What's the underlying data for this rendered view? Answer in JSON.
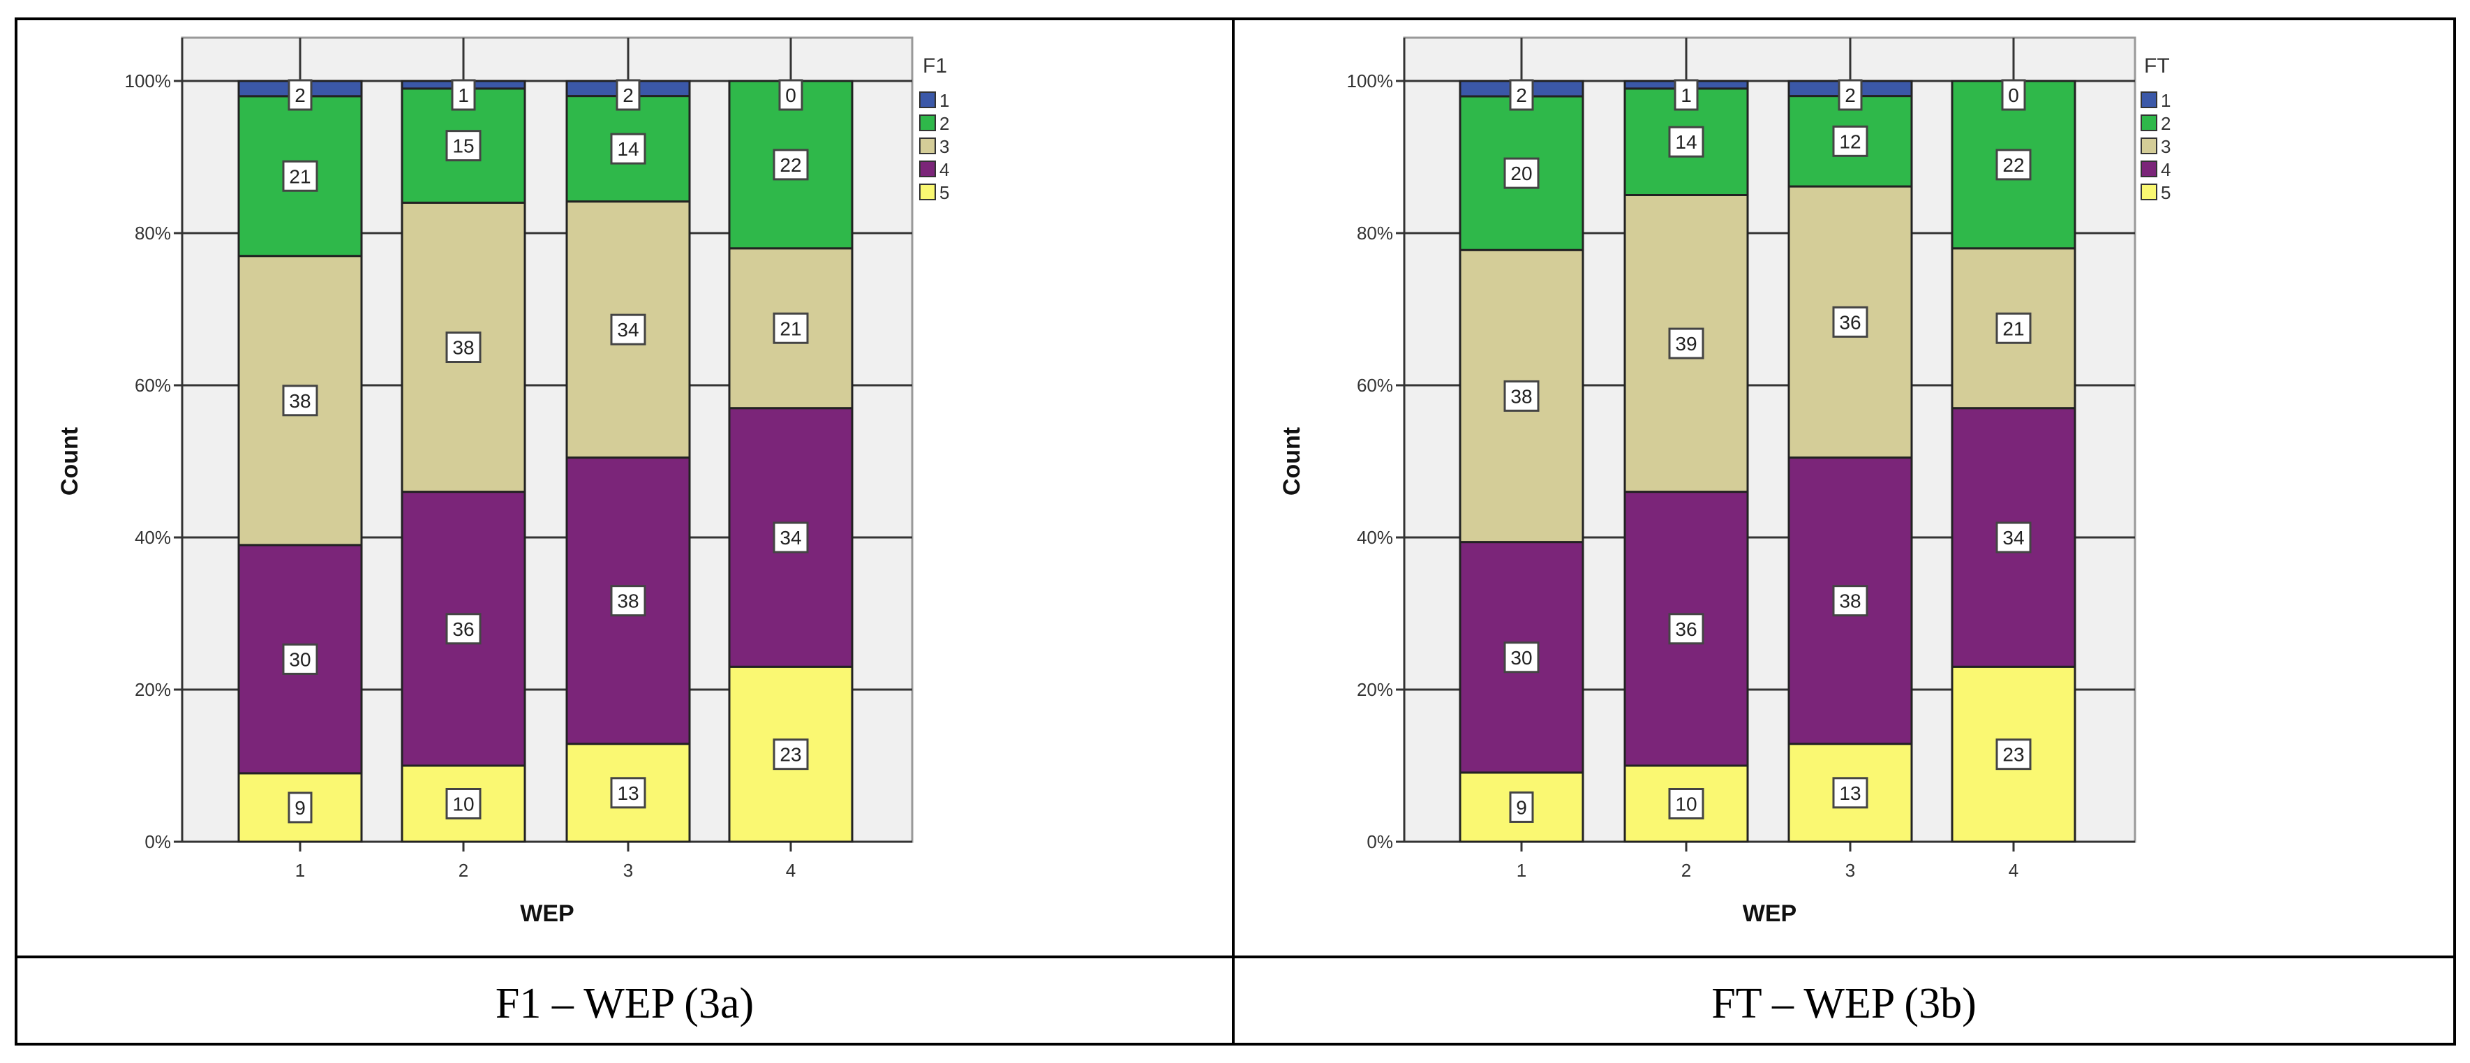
{
  "chart_data": [
    {
      "type": "bar",
      "stacked": "percent",
      "caption": "F1 – WEP (3a)",
      "xlabel": "WEP",
      "ylabel": "Count",
      "categories": [
        "1",
        "2",
        "3",
        "4"
      ],
      "yticks": [
        "0%",
        "20%",
        "40%",
        "60%",
        "80%",
        "100%"
      ],
      "ylim": [
        0,
        100
      ],
      "grid": true,
      "legend_title": "F1",
      "legend_position": "right",
      "series": [
        {
          "name": "1",
          "color": "#3b58a8",
          "values": [
            2,
            1,
            2,
            0
          ]
        },
        {
          "name": "2",
          "color": "#2fb84a",
          "values": [
            21,
            15,
            14,
            22
          ]
        },
        {
          "name": "3",
          "color": "#d4cd98",
          "values": [
            38,
            38,
            34,
            21
          ]
        },
        {
          "name": "4",
          "color": "#7b2579",
          "values": [
            30,
            36,
            38,
            34
          ]
        },
        {
          "name": "5",
          "color": "#faf872",
          "values": [
            9,
            10,
            13,
            23
          ]
        }
      ]
    },
    {
      "type": "bar",
      "stacked": "percent",
      "caption": "FT – WEP (3b)",
      "xlabel": "WEP",
      "ylabel": "Count",
      "categories": [
        "1",
        "2",
        "3",
        "4"
      ],
      "yticks": [
        "0%",
        "20%",
        "40%",
        "60%",
        "80%",
        "100%"
      ],
      "ylim": [
        0,
        100
      ],
      "grid": true,
      "legend_title": "FT",
      "legend_position": "right",
      "series": [
        {
          "name": "1",
          "color": "#3b58a8",
          "values": [
            2,
            1,
            2,
            0
          ]
        },
        {
          "name": "2",
          "color": "#2fb84a",
          "values": [
            20,
            14,
            12,
            22
          ]
        },
        {
          "name": "3",
          "color": "#d4cd98",
          "values": [
            38,
            39,
            36,
            21
          ]
        },
        {
          "name": "4",
          "color": "#7b2579",
          "values": [
            30,
            36,
            38,
            34
          ]
        },
        {
          "name": "5",
          "color": "#faf872",
          "values": [
            9,
            10,
            13,
            23
          ]
        }
      ]
    }
  ]
}
